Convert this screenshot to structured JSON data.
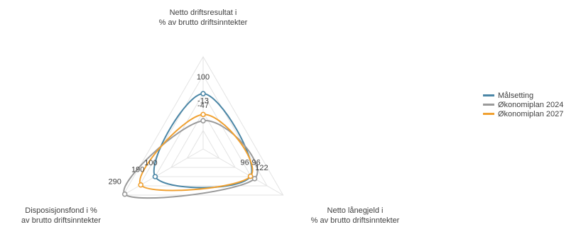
{
  "chart_data": {
    "type": "radar",
    "axes": [
      [
        "Netto driftsresultat i",
        "% av brutto driftsinntekter"
      ],
      [
        "Netto lånegjeld i",
        "% av brutto driftsinntekter"
      ],
      [
        "Disposisjonsfond i %",
        "av brutto driftsinntekter"
      ]
    ],
    "series": [
      {
        "name": "Målsetting",
        "color": "#4a86a6",
        "values": [
          100,
          96,
          100
        ],
        "labels": [
          "100",
          "96",
          "100"
        ]
      },
      {
        "name": "Økonomiplan 2024",
        "color": "#9a9a9a",
        "values": [
          -47,
          122,
          290
        ],
        "labels": [
          "-47",
          "122",
          "290"
        ]
      },
      {
        "name": "Økonomiplan 2027",
        "color": "#f0a030",
        "values": [
          -13,
          96,
          190
        ],
        "labels": [
          "-13",
          "96",
          "190"
        ]
      }
    ],
    "legend_position": "right"
  }
}
